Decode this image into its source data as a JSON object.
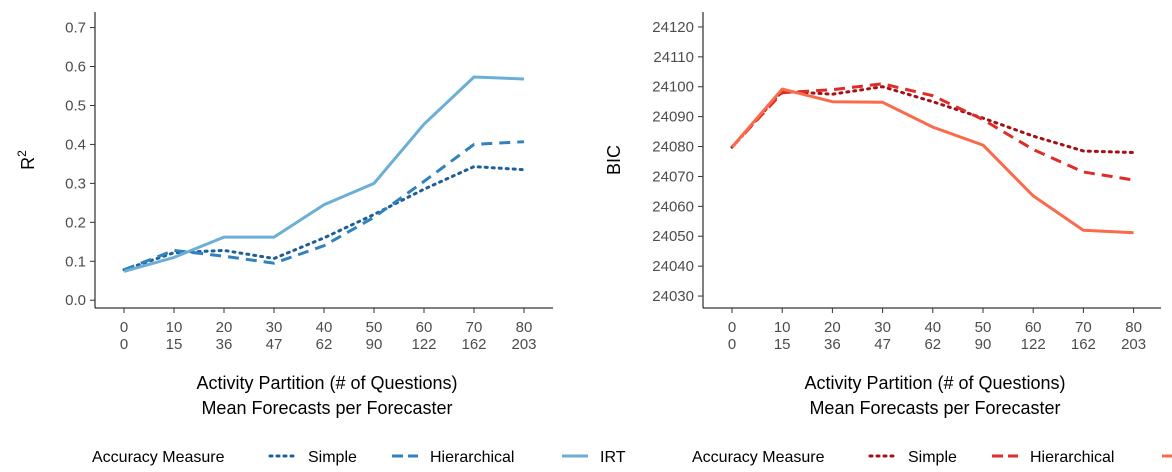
{
  "chart_data": [
    {
      "type": "line",
      "ylabel": "R",
      "ylabel_sup": "2",
      "xlabel_line1": "Activity Partition (# of Questions)",
      "xlabel_line2": "Mean Forecasts per Forecaster",
      "x_ticks_top": [
        "0",
        "10",
        "20",
        "30",
        "40",
        "50",
        "60",
        "70",
        "80"
      ],
      "x_ticks_bottom": [
        "0",
        "15",
        "36",
        "47",
        "62",
        "90",
        "122",
        "162",
        "203"
      ],
      "ylim": [
        -0.02,
        0.74
      ],
      "y_ticks": [
        0.0,
        0.1,
        0.2,
        0.3,
        0.4,
        0.5,
        0.6,
        0.7
      ],
      "y_tick_labels": [
        "0.0",
        "0.1",
        "0.2",
        "0.3",
        "0.4",
        "0.5",
        "0.6",
        "0.7"
      ],
      "x": [
        0,
        10,
        20,
        30,
        40,
        50,
        60,
        70,
        80
      ],
      "series": [
        {
          "name": "Simple",
          "style": "dotted",
          "color": "#1f5f99",
          "values": [
            0.078,
            0.122,
            0.128,
            0.107,
            0.16,
            0.22,
            0.285,
            0.343,
            0.335
          ]
        },
        {
          "name": "Hierarchical",
          "style": "dashed",
          "color": "#3182bd",
          "values": [
            0.078,
            0.128,
            0.113,
            0.095,
            0.14,
            0.213,
            0.305,
            0.4,
            0.407
          ]
        },
        {
          "name": "IRT",
          "style": "solid",
          "color": "#6baed6",
          "values": [
            0.074,
            0.11,
            0.162,
            0.162,
            0.245,
            0.3,
            0.452,
            0.573,
            0.568
          ]
        }
      ],
      "legend_title": "Accuracy Measure",
      "legend_position": "bottom"
    },
    {
      "type": "line",
      "ylabel": "BIC",
      "ylabel_sup": "",
      "xlabel_line1": "Activity Partition (# of Questions)",
      "xlabel_line2": "Mean Forecasts per Forecaster",
      "x_ticks_top": [
        "0",
        "10",
        "20",
        "30",
        "40",
        "50",
        "60",
        "70",
        "80"
      ],
      "x_ticks_bottom": [
        "0",
        "15",
        "36",
        "47",
        "62",
        "90",
        "122",
        "162",
        "203"
      ],
      "ylim": [
        24026,
        24125
      ],
      "y_ticks": [
        24030,
        24040,
        24050,
        24060,
        24070,
        24080,
        24090,
        24100,
        24110,
        24120
      ],
      "y_tick_labels": [
        "24030",
        "24040",
        "24050",
        "24060",
        "24070",
        "24080",
        "24090",
        "24100",
        "24110",
        "24120"
      ],
      "x": [
        0,
        10,
        20,
        30,
        40,
        50,
        60,
        70,
        80
      ],
      "series": [
        {
          "name": "Simple",
          "style": "dotted",
          "color": "#a50f15",
          "values": [
            24079.8,
            24098.5,
            24097.5,
            24100.0,
            24095.0,
            24089.5,
            24083.5,
            24078.5,
            24078.0
          ]
        },
        {
          "name": "Hierarchical",
          "style": "dashed",
          "color": "#de2d26",
          "values": [
            24079.8,
            24098.0,
            24099.0,
            24101.0,
            24097.0,
            24089.0,
            24079.0,
            24071.5,
            24068.8
          ]
        },
        {
          "name": "IRT",
          "style": "solid",
          "color": "#fb6a4a",
          "values": [
            24079.8,
            24099.2,
            24095.0,
            24094.8,
            24086.5,
            24080.5,
            24063.5,
            24052.0,
            24051.2
          ]
        }
      ],
      "legend_title": "Accuracy Measure",
      "legend_position": "bottom"
    }
  ]
}
